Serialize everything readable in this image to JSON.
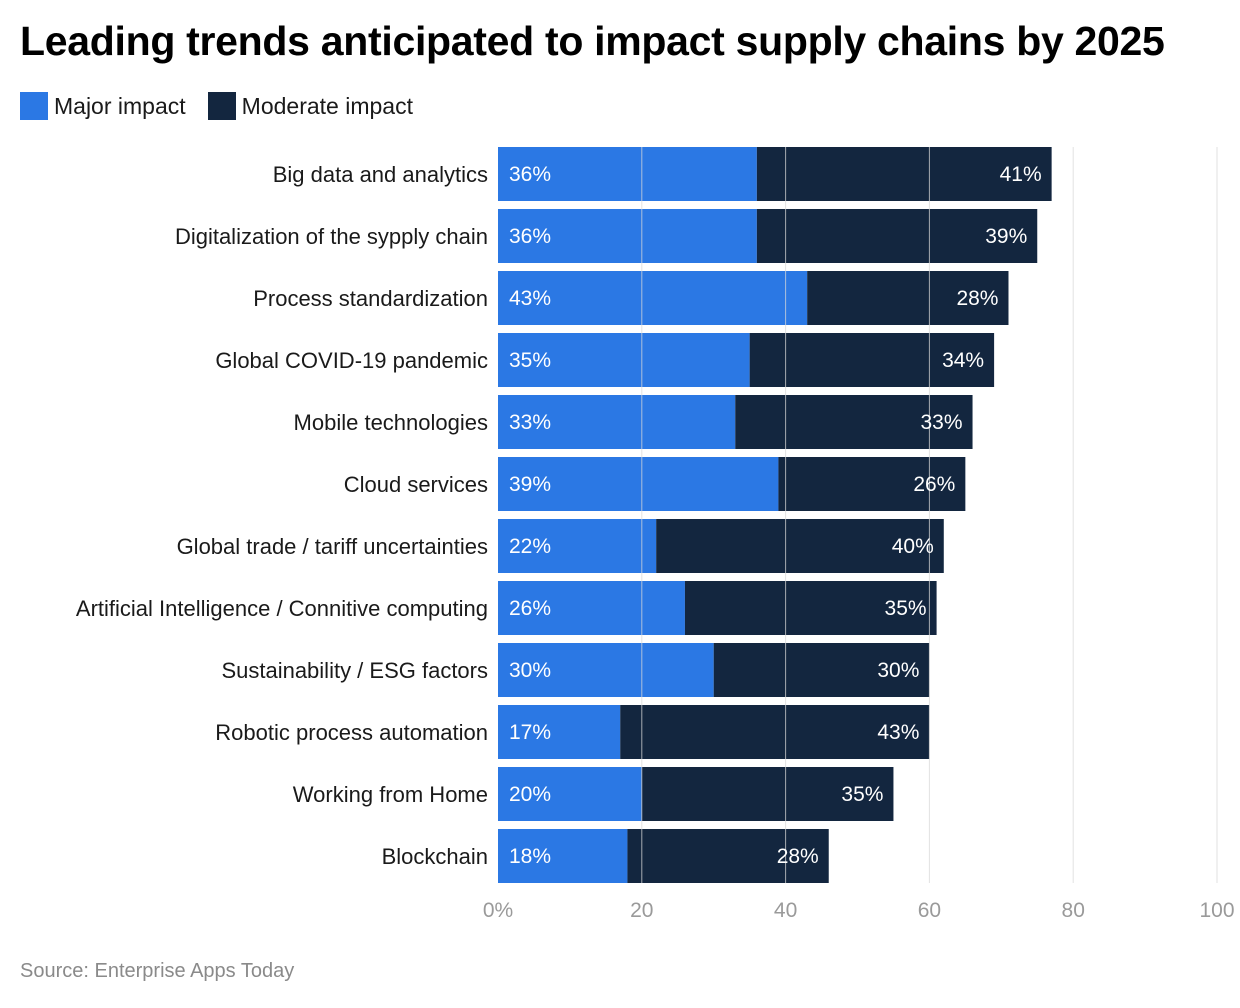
{
  "title": "Leading trends anticipated to impact supply chains by 2025",
  "source": "Source: Enterprise Apps Today",
  "colors": {
    "major": "#2B78E4",
    "moderate": "#13263F",
    "grid": "#d9d9d9",
    "tick": "#9a9a9a"
  },
  "chart_data": {
    "type": "bar",
    "orientation": "horizontal",
    "stacked": true,
    "title": "Leading trends anticipated to impact supply chains by 2025",
    "xlabel": "",
    "ylabel": "",
    "xlim": [
      0,
      100
    ],
    "xticks": [
      0,
      20,
      40,
      60,
      80,
      100
    ],
    "xtick_labels": [
      "0%",
      "20",
      "40",
      "60",
      "80",
      "100"
    ],
    "legend_position": "top-left",
    "categories": [
      "Big data and analytics",
      "Digitalization of the sypply chain",
      "Process standardization",
      "Global COVID-19 pandemic",
      "Mobile technologies",
      "Cloud services",
      "Global trade / tariff uncertainties",
      "Artificial Intelligence / Connitive computing",
      "Sustainability / ESG factors",
      "Robotic process automation",
      "Working from Home",
      "Blockchain"
    ],
    "series": [
      {
        "name": "Major impact",
        "values": [
          36,
          36,
          43,
          35,
          33,
          39,
          22,
          26,
          30,
          17,
          20,
          18
        ]
      },
      {
        "name": "Moderate impact",
        "values": [
          41,
          39,
          28,
          34,
          33,
          26,
          40,
          35,
          30,
          43,
          35,
          28
        ]
      }
    ]
  }
}
